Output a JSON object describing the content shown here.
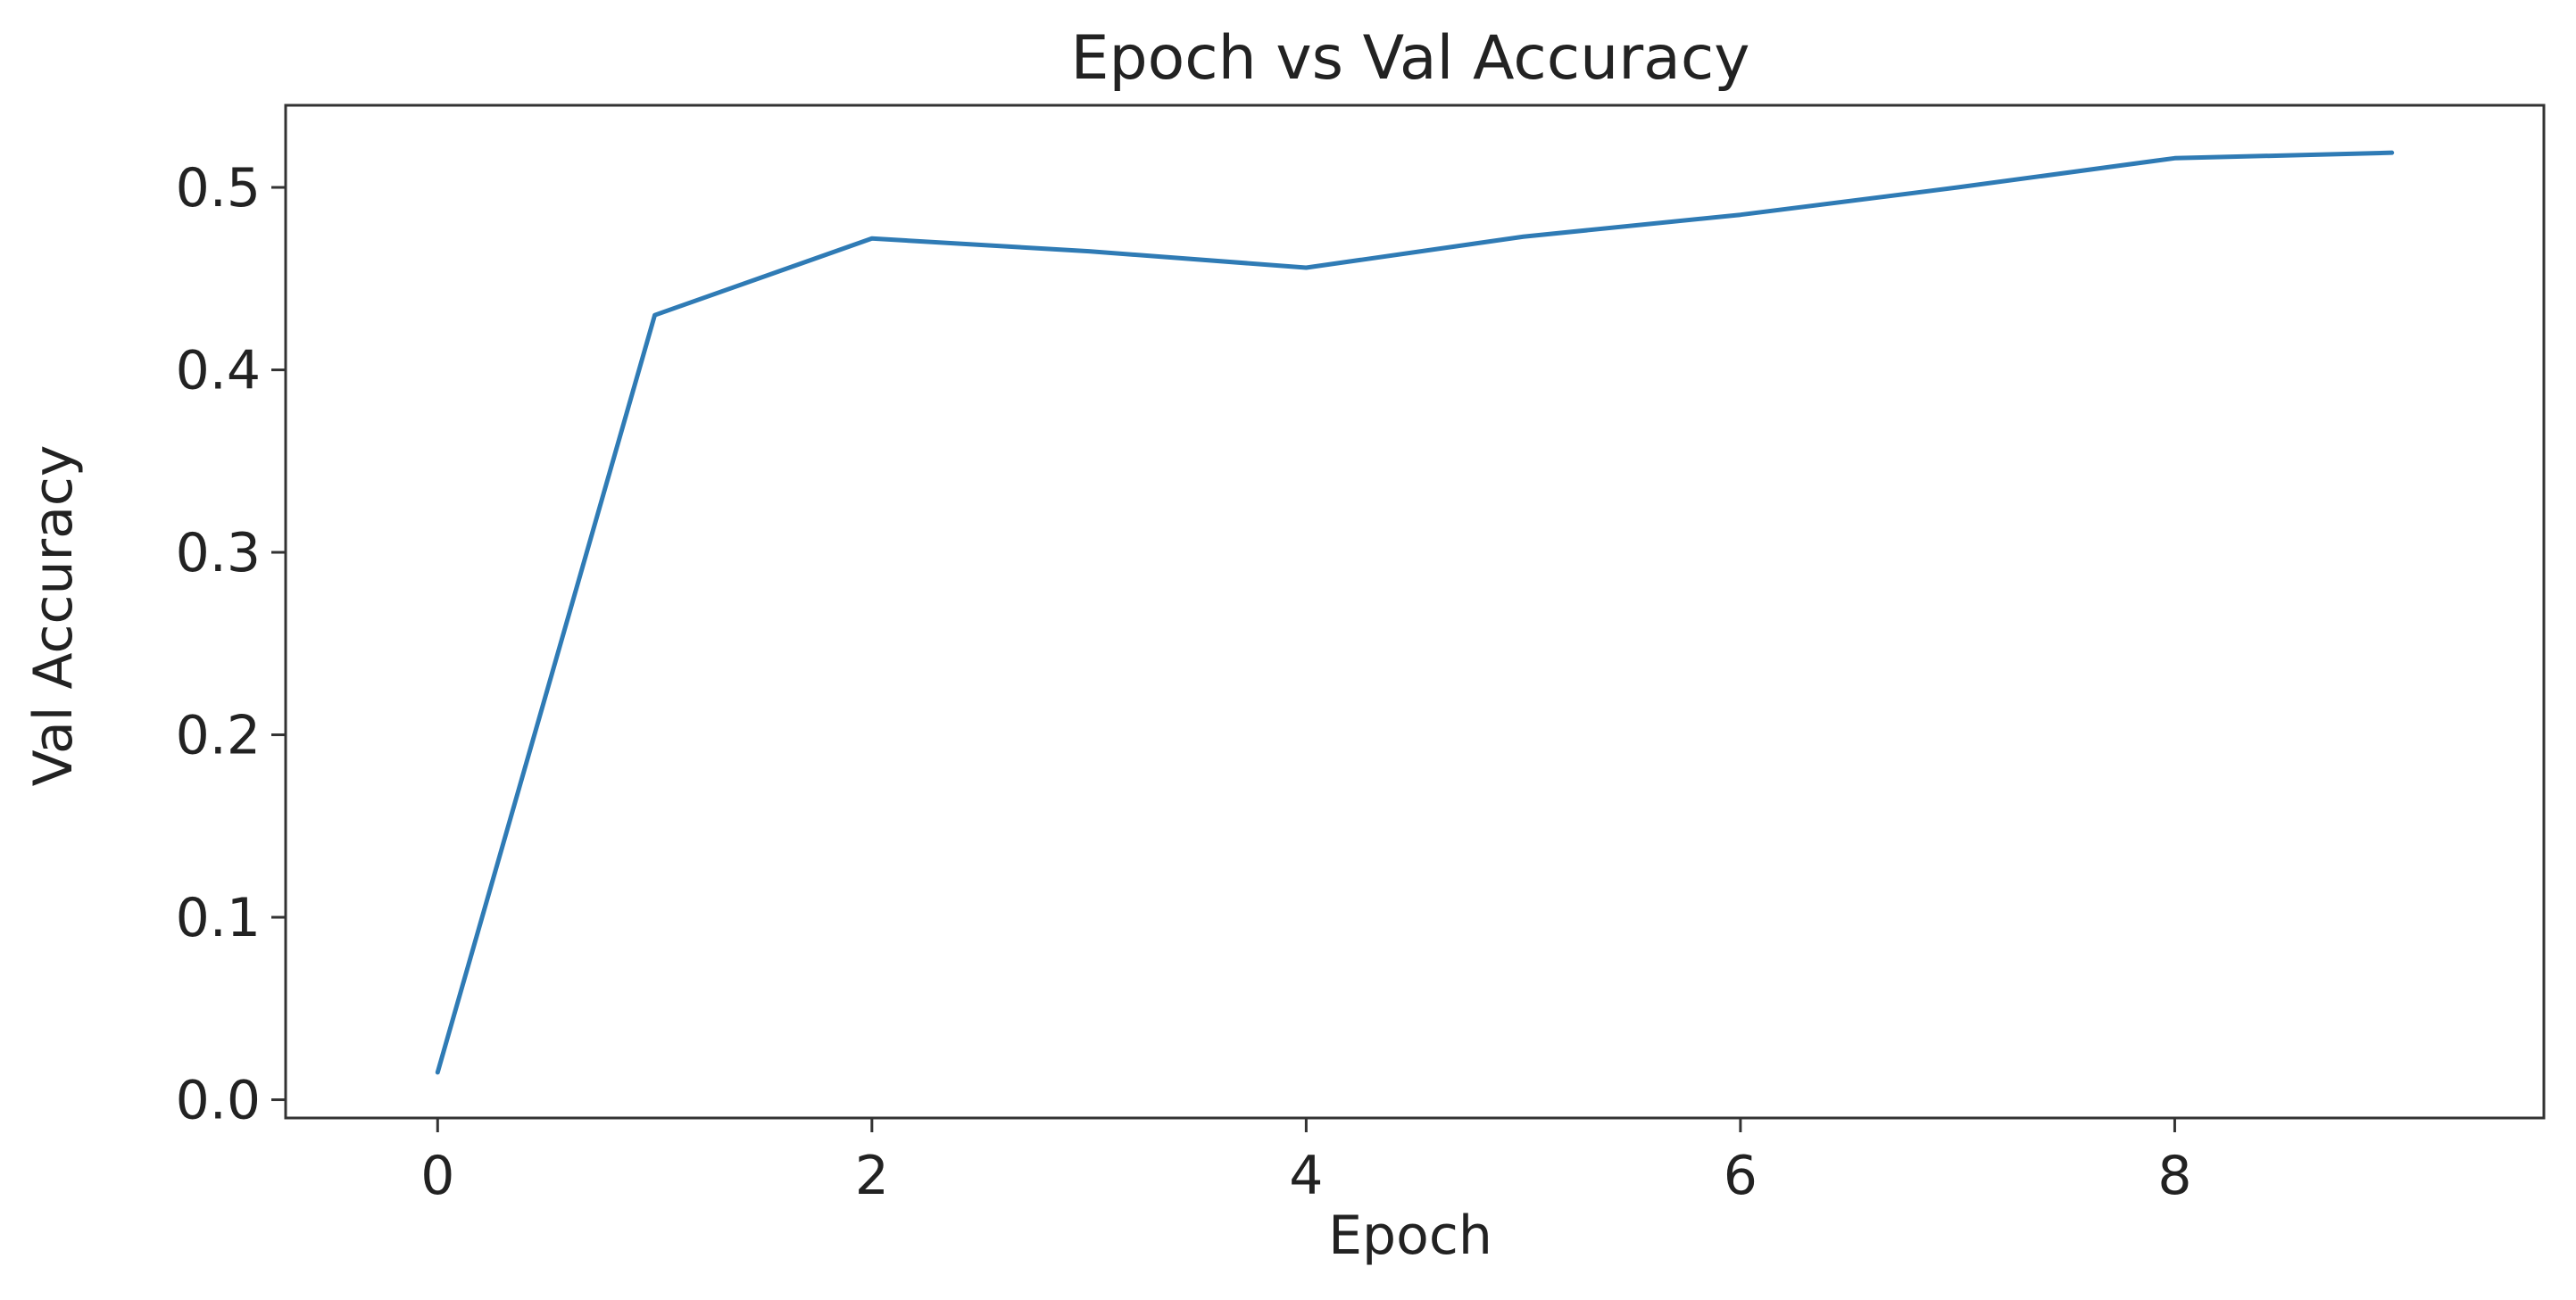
{
  "chart_data": {
    "type": "line",
    "title": "Epoch vs Val Accuracy",
    "xlabel": "Epoch",
    "ylabel": "Val Accuracy",
    "xlim": [
      -0.7,
      9.7
    ],
    "ylim": [
      -0.01,
      0.545
    ],
    "xticks": [
      0,
      2,
      4,
      6,
      8
    ],
    "yticks": [
      0.0,
      0.1,
      0.2,
      0.3,
      0.4,
      0.5
    ],
    "grid": false,
    "series": [
      {
        "color": "#2f7bb5",
        "x": [
          0,
          1,
          2,
          3,
          4,
          5,
          6,
          7,
          8,
          9
        ],
        "y": [
          0.015,
          0.43,
          0.472,
          0.465,
          0.456,
          0.473,
          0.485,
          0.5,
          0.516,
          0.519
        ]
      }
    ]
  }
}
